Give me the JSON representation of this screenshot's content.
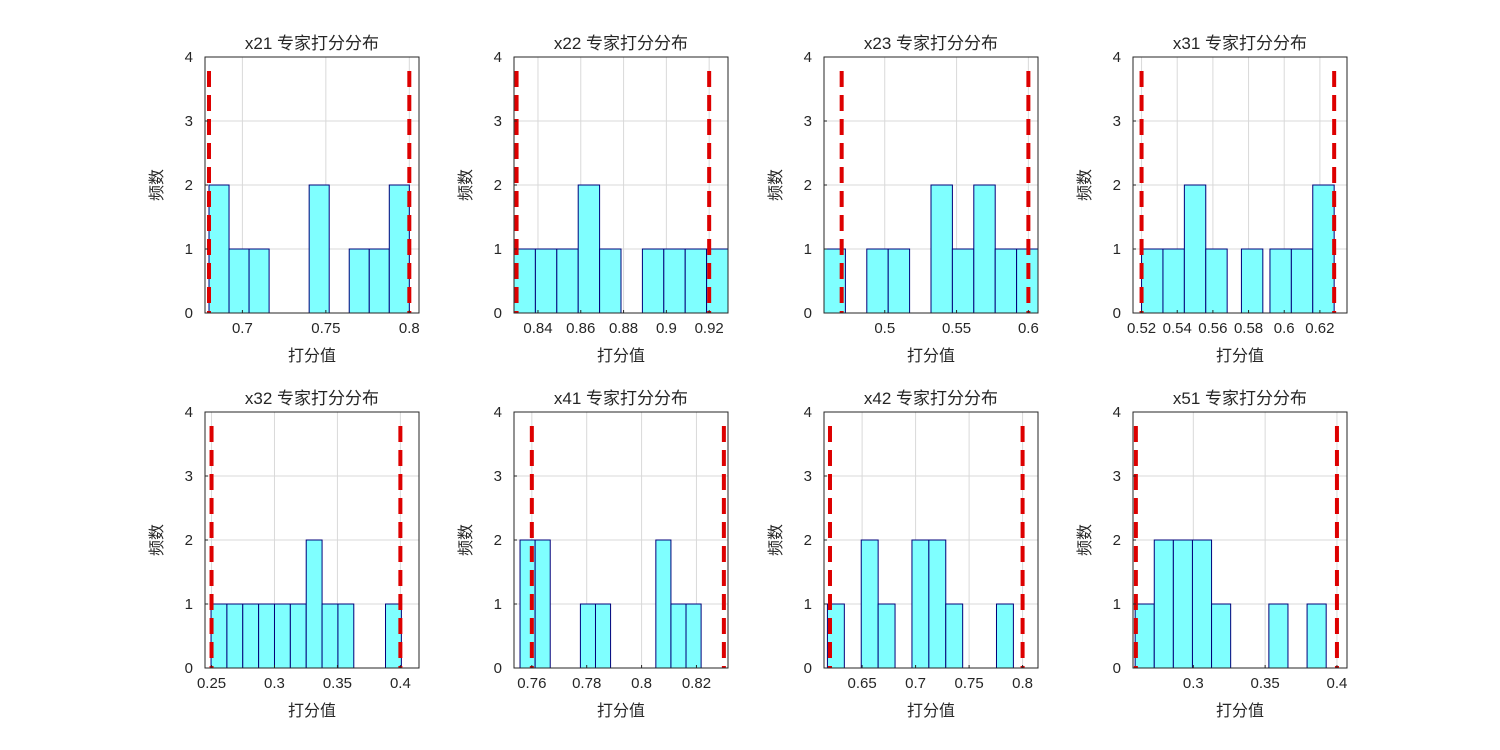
{
  "style": {
    "bar_fill": "#7fffff",
    "bar_stroke": "#00007a",
    "threshold_color": "#dd0000",
    "grid_color": "#d9d9d9",
    "axis_color": "#262626"
  },
  "chart_data": [
    {
      "type": "bar",
      "title": "x21 专家打分分布",
      "xlabel": "打分值",
      "ylabel": "频数",
      "xlim": [
        0.6776,
        0.8058
      ],
      "ylim": [
        0,
        4
      ],
      "xticks": [
        0.7,
        0.75,
        0.8
      ],
      "xtick_labels": [
        "0.7",
        "0.75",
        "0.8"
      ],
      "yticks": [
        0,
        1,
        2,
        3,
        4
      ],
      "ytick_labels": [
        "0",
        "1",
        "2",
        "3",
        "4"
      ],
      "bin_width": 0.012,
      "bins": [
        {
          "start": 0.68,
          "count": 2
        },
        {
          "start": 0.692,
          "count": 1
        },
        {
          "start": 0.704,
          "count": 1
        },
        {
          "start": 0.74,
          "count": 2
        },
        {
          "start": 0.764,
          "count": 1
        },
        {
          "start": 0.776,
          "count": 1
        },
        {
          "start": 0.788,
          "count": 2
        }
      ],
      "thresholds": [
        0.68,
        0.8
      ]
    },
    {
      "type": "bar",
      "title": "x22 专家打分分布",
      "xlabel": "打分值",
      "ylabel": "频数",
      "xlim": [
        0.8288,
        0.9288
      ],
      "ylim": [
        0,
        4
      ],
      "xticks": [
        0.84,
        0.86,
        0.88,
        0.9,
        0.92
      ],
      "xtick_labels": [
        "0.84",
        "0.86",
        "0.88",
        "0.9",
        "0.92"
      ],
      "yticks": [
        0,
        1,
        2,
        3,
        4
      ],
      "ytick_labels": [
        "0",
        "1",
        "2",
        "3",
        "4"
      ],
      "bin_width": 0.01,
      "bins": [
        {
          "start": 0.8288,
          "count": 1
        },
        {
          "start": 0.8388,
          "count": 1
        },
        {
          "start": 0.8488,
          "count": 1
        },
        {
          "start": 0.8588,
          "count": 2
        },
        {
          "start": 0.8688,
          "count": 1
        },
        {
          "start": 0.8888,
          "count": 1
        },
        {
          "start": 0.8988,
          "count": 1
        },
        {
          "start": 0.9088,
          "count": 1
        },
        {
          "start": 0.9188,
          "count": 1
        }
      ],
      "thresholds": [
        0.83,
        0.92
      ]
    },
    {
      "type": "bar",
      "title": "x23 专家打分分布",
      "xlabel": "打分值",
      "ylabel": "频数",
      "xlim": [
        0.4577,
        0.6067
      ],
      "ylim": [
        0,
        4
      ],
      "xticks": [
        0.5,
        0.55,
        0.6
      ],
      "xtick_labels": [
        "0.5",
        "0.55",
        "0.6"
      ],
      "yticks": [
        0,
        1,
        2,
        3,
        4
      ],
      "ytick_labels": [
        "0",
        "1",
        "2",
        "3",
        "4"
      ],
      "bin_width": 0.0149,
      "bins": [
        {
          "start": 0.4577,
          "count": 1
        },
        {
          "start": 0.4875,
          "count": 1
        },
        {
          "start": 0.5024,
          "count": 1
        },
        {
          "start": 0.5322,
          "count": 2
        },
        {
          "start": 0.5471,
          "count": 1
        },
        {
          "start": 0.562,
          "count": 2
        },
        {
          "start": 0.5769,
          "count": 1
        },
        {
          "start": 0.5918,
          "count": 1
        }
      ],
      "thresholds": [
        0.47,
        0.6
      ]
    },
    {
      "type": "bar",
      "title": "x31 专家打分分布",
      "xlabel": "打分值",
      "ylabel": "频数",
      "xlim": [
        0.5152,
        0.6352
      ],
      "ylim": [
        0,
        4
      ],
      "xticks": [
        0.52,
        0.54,
        0.56,
        0.58,
        0.6,
        0.62
      ],
      "xtick_labels": [
        "0.52",
        "0.54",
        "0.56",
        "0.58",
        "0.6",
        "0.62"
      ],
      "yticks": [
        0,
        1,
        2,
        3,
        4
      ],
      "ytick_labels": [
        "0",
        "1",
        "2",
        "3",
        "4"
      ],
      "bin_width": 0.012,
      "bins": [
        {
          "start": 0.52,
          "count": 1
        },
        {
          "start": 0.532,
          "count": 1
        },
        {
          "start": 0.544,
          "count": 2
        },
        {
          "start": 0.556,
          "count": 1
        },
        {
          "start": 0.576,
          "count": 1
        },
        {
          "start": 0.592,
          "count": 1
        },
        {
          "start": 0.604,
          "count": 1
        },
        {
          "start": 0.616,
          "count": 2
        }
      ],
      "thresholds": [
        0.52,
        0.628
      ]
    },
    {
      "type": "bar",
      "title": "x32 专家打分分布",
      "xlabel": "打分值",
      "ylabel": "频数",
      "xlim": [
        0.2448,
        0.4148
      ],
      "ylim": [
        0,
        4
      ],
      "xticks": [
        0.25,
        0.3,
        0.35,
        0.4
      ],
      "xtick_labels": [
        "0.25",
        "0.3",
        "0.35",
        "0.4"
      ],
      "yticks": [
        0,
        1,
        2,
        3,
        4
      ],
      "ytick_labels": [
        "0",
        "1",
        "2",
        "3",
        "4"
      ],
      "bin_width": 0.0126,
      "bins": [
        {
          "start": 0.2496,
          "count": 1
        },
        {
          "start": 0.2622,
          "count": 1
        },
        {
          "start": 0.2748,
          "count": 1
        },
        {
          "start": 0.2874,
          "count": 1
        },
        {
          "start": 0.3,
          "count": 1
        },
        {
          "start": 0.3126,
          "count": 1
        },
        {
          "start": 0.3252,
          "count": 2
        },
        {
          "start": 0.3378,
          "count": 1
        },
        {
          "start": 0.3504,
          "count": 1
        },
        {
          "start": 0.3882,
          "count": 1
        }
      ],
      "thresholds": [
        0.25,
        0.4
      ]
    },
    {
      "type": "bar",
      "title": "x41 专家打分分布",
      "xlabel": "打分值",
      "ylabel": "频数",
      "xlim": [
        0.7535,
        0.8315
      ],
      "ylim": [
        0,
        4
      ],
      "xticks": [
        0.76,
        0.78,
        0.8,
        0.82
      ],
      "xtick_labels": [
        "0.76",
        "0.78",
        "0.8",
        "0.82"
      ],
      "yticks": [
        0,
        1,
        2,
        3,
        4
      ],
      "ytick_labels": [
        "0",
        "1",
        "2",
        "3",
        "4"
      ],
      "bin_width": 0.0055,
      "bins": [
        {
          "start": 0.7557,
          "count": 2
        },
        {
          "start": 0.7612,
          "count": 2
        },
        {
          "start": 0.7777,
          "count": 1
        },
        {
          "start": 0.7832,
          "count": 1
        },
        {
          "start": 0.8052,
          "count": 2
        },
        {
          "start": 0.8107,
          "count": 1
        },
        {
          "start": 0.8162,
          "count": 1
        }
      ],
      "thresholds": [
        0.76,
        0.83
      ]
    },
    {
      "type": "bar",
      "title": "x42 专家打分分布",
      "xlabel": "打分值",
      "ylabel": "频数",
      "xlim": [
        0.6144,
        0.8144
      ],
      "ylim": [
        0,
        4
      ],
      "xticks": [
        0.65,
        0.7,
        0.75,
        0.8
      ],
      "xtick_labels": [
        "0.65",
        "0.7",
        "0.75",
        "0.8"
      ],
      "yticks": [
        0,
        1,
        2,
        3,
        4
      ],
      "ytick_labels": [
        "0",
        "1",
        "2",
        "3",
        "4"
      ],
      "bin_width": 0.0158,
      "bins": [
        {
          "start": 0.6176,
          "count": 1
        },
        {
          "start": 0.6492,
          "count": 2
        },
        {
          "start": 0.665,
          "count": 1
        },
        {
          "start": 0.6966,
          "count": 2
        },
        {
          "start": 0.7124,
          "count": 2
        },
        {
          "start": 0.7282,
          "count": 1
        },
        {
          "start": 0.7756,
          "count": 1
        }
      ],
      "thresholds": [
        0.62,
        0.8
      ]
    },
    {
      "type": "bar",
      "title": "x51 专家打分分布",
      "xlabel": "打分值",
      "ylabel": "频数",
      "xlim": [
        0.258,
        0.407
      ],
      "ylim": [
        0,
        4
      ],
      "xticks": [
        0.3,
        0.35,
        0.4
      ],
      "xtick_labels": [
        "0.3",
        "0.35",
        "0.4"
      ],
      "yticks": [
        0,
        1,
        2,
        3,
        4
      ],
      "ytick_labels": [
        "0",
        "1",
        "2",
        "3",
        "4"
      ],
      "bin_width": 0.0133,
      "bins": [
        {
          "start": 0.2595,
          "count": 1
        },
        {
          "start": 0.2728,
          "count": 2
        },
        {
          "start": 0.2861,
          "count": 2
        },
        {
          "start": 0.2994,
          "count": 2
        },
        {
          "start": 0.3127,
          "count": 1
        },
        {
          "start": 0.3526,
          "count": 1
        },
        {
          "start": 0.3792,
          "count": 1
        }
      ],
      "thresholds": [
        0.26,
        0.4
      ]
    }
  ]
}
